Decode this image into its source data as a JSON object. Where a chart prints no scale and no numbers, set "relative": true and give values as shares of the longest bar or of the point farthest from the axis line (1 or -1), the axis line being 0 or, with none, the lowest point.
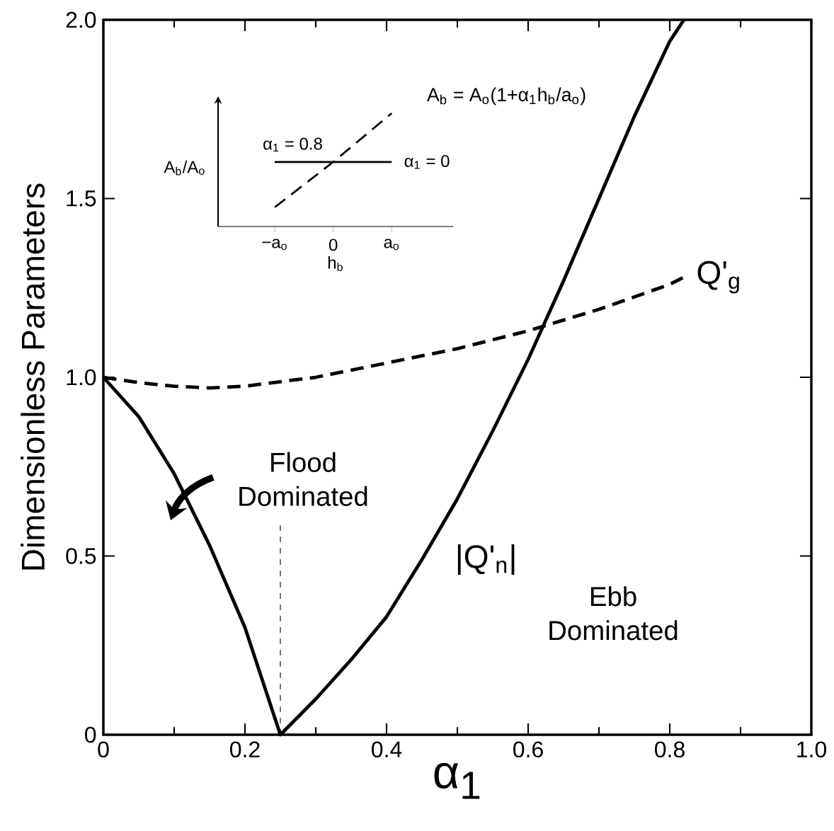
{
  "chart_data": [
    {
      "type": "line",
      "xlabel": "α$_{1}$",
      "ylabel": "Dimensionless  Parameters",
      "xlim": [
        0,
        1.0
      ],
      "ylim": [
        0,
        2.0
      ],
      "xticks": [
        0,
        0.2,
        0.4,
        0.6,
        0.8,
        {
          "value": 1.0,
          "label": "1.0"
        }
      ],
      "yticks": [
        0,
        0.5,
        {
          "value": 1.0,
          "label": "1.0"
        },
        1.5,
        {
          "value": 2.0,
          "label": "2.0"
        }
      ],
      "series": [
        {
          "name": "|Q'$_{n}$|",
          "color": "#000000",
          "line_style": "solid",
          "x": [
            0,
            0.05,
            0.1,
            0.15,
            0.2,
            0.25,
            0.3,
            0.35,
            0.4,
            0.45,
            0.5,
            0.55,
            0.6,
            0.65,
            0.7,
            0.75,
            0.8,
            0.82
          ],
          "values": [
            1.0,
            0.89,
            0.73,
            0.53,
            0.3,
            0,
            0.1,
            0.21,
            0.33,
            0.49,
            0.66,
            0.85,
            1.05,
            1.27,
            1.5,
            1.73,
            1.94,
            2.0
          ]
        },
        {
          "name": "Q'$_{g}$",
          "color": "#000000",
          "line_style": "dashed",
          "x": [
            0,
            0.05,
            0.1,
            0.15,
            0.2,
            0.3,
            0.4,
            0.5,
            0.6,
            0.7,
            0.8,
            0.82
          ],
          "values": [
            1.0,
            0.985,
            0.975,
            0.97,
            0.975,
            1.0,
            1.04,
            1.08,
            1.13,
            1.19,
            1.26,
            1.28
          ]
        }
      ],
      "ref_lines": [
        {
          "axis": "x",
          "value": 0.25,
          "label": "Flood Dominated",
          "line_style": "dashed"
        }
      ],
      "annotations": [
        "Ebb Dominated"
      ],
      "marker": "none"
    },
    {
      "type": "line",
      "relative": true,
      "xlabel": "h$_{b}$",
      "ylabel": "A$_{b}$/A$_{o}$",
      "categories": [
        "−a$_{o}$",
        "0",
        "a$_{o}$"
      ],
      "series": [
        {
          "name": "α$_{1}$ = 0.8",
          "color": "#000000",
          "line_style": "dashed",
          "values": [
            0.17,
            0.57,
            1.0
          ]
        },
        {
          "name": "α$_{1}$ = 0",
          "color": "#000000",
          "line_style": "solid",
          "values": [
            0.57,
            0.57,
            0.57
          ]
        }
      ],
      "annotations": [
        "A$_{b}$ = A$_{o}$(1+α$_{1}$h$_{b}$/a$_{o}$)"
      ],
      "marker": "none"
    }
  ]
}
